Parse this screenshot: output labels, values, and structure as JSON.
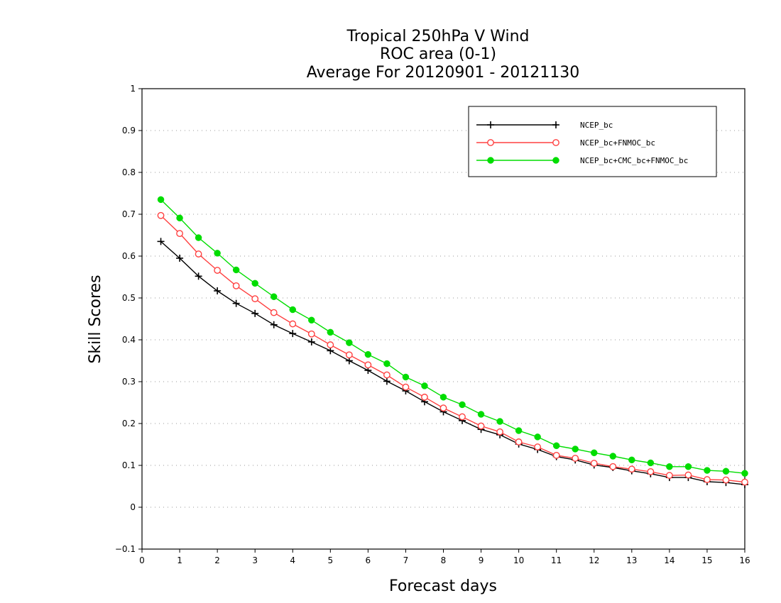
{
  "chart_data": {
    "type": "line",
    "title": [
      "Tropical 250hPa V Wind",
      "ROC area (0-1)",
      "Average For 20120901 - 20121130"
    ],
    "xlabel": "Forecast days",
    "ylabel": "Skill Scores",
    "xlim": [
      0,
      16
    ],
    "ylim": [
      -0.1,
      1
    ],
    "xticks": [
      "0",
      "1",
      "2",
      "3",
      "4",
      "5",
      "6",
      "7",
      "8",
      "9",
      "10",
      "11",
      "12",
      "13",
      "14",
      "15",
      "16"
    ],
    "yticks": [
      "−0.1",
      "0",
      "0.1",
      "0.2",
      "0.3",
      "0.4",
      "0.5",
      "0.6",
      "0.7",
      "0.8",
      "0.9",
      "1"
    ],
    "grid": true,
    "legend_position": "top-right",
    "x": [
      0.5,
      1,
      1.5,
      2,
      2.5,
      3,
      3.5,
      4,
      4.5,
      5,
      5.5,
      6,
      6.5,
      7,
      7.5,
      8,
      8.5,
      9,
      9.5,
      10,
      10.5,
      11,
      11.5,
      12,
      12.5,
      13,
      13.5,
      14,
      14.5,
      15,
      15.5,
      16
    ],
    "series": [
      {
        "name": "NCEP_bc",
        "color": "#000000",
        "marker": "plus",
        "values": [
          0.635,
          0.595,
          0.552,
          0.517,
          0.487,
          0.463,
          0.436,
          0.415,
          0.395,
          0.374,
          0.35,
          0.327,
          0.301,
          0.278,
          0.252,
          0.228,
          0.207,
          0.186,
          0.173,
          0.151,
          0.138,
          0.121,
          0.113,
          0.101,
          0.095,
          0.087,
          0.08,
          0.071,
          0.071,
          0.061,
          0.059,
          0.054
        ]
      },
      {
        "name": "NCEP_bc+FNMOC_bc",
        "color": "#ff4040",
        "marker": "open-circle",
        "values": [
          0.697,
          0.654,
          0.605,
          0.566,
          0.529,
          0.498,
          0.465,
          0.438,
          0.414,
          0.388,
          0.364,
          0.34,
          0.316,
          0.287,
          0.263,
          0.237,
          0.216,
          0.194,
          0.18,
          0.156,
          0.144,
          0.124,
          0.117,
          0.105,
          0.097,
          0.091,
          0.085,
          0.076,
          0.077,
          0.066,
          0.065,
          0.06
        ]
      },
      {
        "name": "NCEP_bc+CMC_bc+FNMOC_bc",
        "color": "#00dd00",
        "marker": "filled-circle",
        "values": [
          0.735,
          0.691,
          0.644,
          0.607,
          0.567,
          0.535,
          0.503,
          0.472,
          0.447,
          0.418,
          0.393,
          0.365,
          0.343,
          0.311,
          0.29,
          0.263,
          0.245,
          0.222,
          0.205,
          0.183,
          0.168,
          0.147,
          0.139,
          0.13,
          0.122,
          0.113,
          0.106,
          0.097,
          0.097,
          0.088,
          0.086,
          0.081
        ]
      }
    ]
  }
}
